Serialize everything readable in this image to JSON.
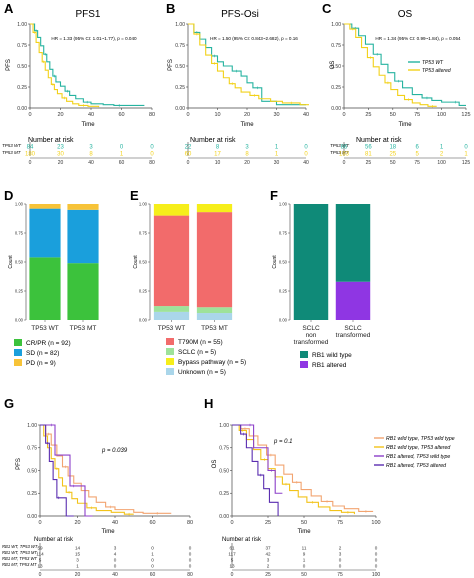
{
  "colors": {
    "wt": "#26b3a0",
    "mt": "#f2d11a",
    "rb_wt_tp_wt": "#f2a470",
    "rb_wt_tp_mt": "#f2c31a",
    "rb_alt_tp_wt": "#8c3fc9",
    "rb_alt_tp_mt": "#5a2db0",
    "cr_pr": "#3cc23c",
    "sd": "#1a9fdc",
    "pd": "#f7c338",
    "t790m": "#f26b6b",
    "sclc": "#9ee29a",
    "bypass": "#f6ee1a",
    "unknown": "#aad6ea",
    "rb1_wt": "#0f8a78",
    "rb1_alt": "#8f36e3"
  },
  "panels": {
    "A": {
      "letter": "A",
      "title": "PFS1",
      "ylabel": "PFS",
      "xlabel": "Time",
      "stat": "HR = 1.33 (95% CI: 1.01~1.77), p = 0.040",
      "risk_title": "Number at risk",
      "risk_labels": [
        "TP53 WT",
        "TP53 MT"
      ]
    },
    "B": {
      "letter": "B",
      "title": "PFS-Osi",
      "ylabel": "PFS",
      "xlabel": "Time",
      "stat": "HR = 1.50 (95% CI: 0.843~2.682), p = 0.16",
      "risk_title": "Number at risk"
    },
    "C": {
      "letter": "C",
      "title": "OS",
      "ylabel": "OS",
      "xlabel": "Time",
      "stat": "HR = 1.34 (95% CI: 0.99~1.84), p = 0.054",
      "risk_title": "Number at risk",
      "risk_labels": [
        "TP53 WT",
        "TP53 MT"
      ],
      "legend": [
        "TP53 WT",
        "TP53 altered"
      ]
    },
    "D": {
      "letter": "D",
      "ylabel": "Count",
      "legend": [
        "CR/PR (n = 92)",
        "SD (n = 82)",
        "PD (n = 9)"
      ]
    },
    "E": {
      "letter": "E",
      "ylabel": "Count",
      "legend": [
        "T790M (n = 55)",
        "SCLC (n = 5)",
        "Bypass pathway (n = 5)",
        "Unknown (n = 5)"
      ]
    },
    "F": {
      "letter": "F",
      "ylabel": "Count",
      "legend": [
        "RB1 wild type",
        "RB1 altered"
      ]
    },
    "G": {
      "letter": "G",
      "ylabel": "PFS",
      "xlabel": "Time",
      "stat": "p = 0.039",
      "risk_title": "Number at risk",
      "risk_labels": [
        "RB1 WT, TP53 WT",
        "RB1 WT, TP53 MT",
        "RB1 MT, TP53 WT",
        "RB1 MT, TP53 MT"
      ]
    },
    "H": {
      "letter": "H",
      "ylabel": "OS",
      "xlabel": "Time",
      "stat": "p = 0.1",
      "risk_title": "Number at risk",
      "legend": [
        "RB1 wild type, TP53 wild type",
        "RB1 wild type, TP53 altered",
        "RB1 altered, TP53 wild type",
        "RB1 altered, TP53 altered"
      ]
    }
  },
  "chart_data": [
    {
      "panel": "A",
      "type": "line",
      "title": "PFS1",
      "xlabel": "Time",
      "ylabel": "PFS",
      "xlim": [
        0,
        80
      ],
      "ylim": [
        0,
        1
      ],
      "xticks": [
        0,
        20,
        40,
        60,
        80
      ],
      "yticks": [
        0.0,
        0.25,
        0.5,
        0.75,
        1.0
      ],
      "series": [
        {
          "name": "TP53 WT",
          "x": [
            0,
            3,
            5,
            7,
            9,
            11,
            13,
            15,
            17,
            20,
            23,
            26,
            30,
            35,
            40,
            48,
            55,
            62,
            75
          ],
          "y": [
            1,
            0.92,
            0.84,
            0.74,
            0.64,
            0.55,
            0.46,
            0.38,
            0.31,
            0.26,
            0.2,
            0.15,
            0.11,
            0.07,
            0.05,
            0.04,
            0.03,
            0.03,
            0.03
          ]
        },
        {
          "name": "TP53 altered",
          "x": [
            0,
            2,
            4,
            6,
            8,
            10,
            12,
            14,
            16,
            18,
            21,
            24,
            28,
            32,
            38,
            45
          ],
          "y": [
            1,
            0.9,
            0.78,
            0.66,
            0.55,
            0.45,
            0.36,
            0.28,
            0.22,
            0.17,
            0.12,
            0.08,
            0.05,
            0.03,
            0.02,
            0.01
          ]
        }
      ],
      "risk_table": {
        "times": [
          0,
          20,
          40,
          60,
          80
        ],
        "rows": [
          {
            "name": "TP53 WT",
            "values": [
              84,
              23,
              3,
              0,
              0
            ]
          },
          {
            "name": "TP53 MT",
            "values": [
              180,
              30,
              8,
              1,
              0
            ]
          }
        ]
      }
    },
    {
      "panel": "B",
      "type": "line",
      "title": "PFS-Osi",
      "xlabel": "Time",
      "ylabel": "PFS",
      "xlim": [
        0,
        40
      ],
      "ylim": [
        0,
        1
      ],
      "xticks": [
        0,
        10,
        20,
        30,
        40
      ],
      "yticks": [
        0.0,
        0.25,
        0.5,
        0.75,
        1.0
      ],
      "series": [
        {
          "name": "TP53 WT",
          "x": [
            0,
            2,
            4,
            6,
            8,
            10,
            12,
            15,
            18,
            20,
            22,
            25,
            30,
            40
          ],
          "y": [
            1,
            0.9,
            0.82,
            0.72,
            0.62,
            0.55,
            0.5,
            0.44,
            0.38,
            0.3,
            0.24,
            0.08,
            0.04,
            0.04
          ]
        },
        {
          "name": "TP53 altered",
          "x": [
            0,
            2,
            4,
            6,
            8,
            10,
            12,
            14,
            16,
            18,
            21,
            24,
            28,
            32,
            38,
            41
          ],
          "y": [
            1,
            0.88,
            0.75,
            0.63,
            0.53,
            0.44,
            0.36,
            0.29,
            0.24,
            0.19,
            0.15,
            0.11,
            0.08,
            0.06,
            0.04,
            0.04
          ]
        }
      ],
      "risk_table": {
        "times": [
          0,
          10,
          20,
          30,
          40
        ],
        "rows": [
          {
            "name": "TP53 WT",
            "values": [
              22,
              8,
              3,
              1,
              0
            ]
          },
          {
            "name": "TP53 MT",
            "values": [
              60,
              17,
              8,
              1,
              0
            ]
          }
        ]
      }
    },
    {
      "panel": "C",
      "type": "line",
      "title": "OS",
      "xlabel": "Time",
      "ylabel": "OS",
      "xlim": [
        0,
        125
      ],
      "ylim": [
        0,
        1
      ],
      "xticks": [
        0,
        25,
        50,
        75,
        100,
        125
      ],
      "yticks": [
        0.0,
        0.25,
        0.5,
        0.75,
        1.0
      ],
      "series": [
        {
          "name": "TP53 WT",
          "x": [
            0,
            8,
            15,
            22,
            30,
            38,
            45,
            52,
            60,
            70,
            80,
            90,
            100,
            110,
            118,
            125
          ],
          "y": [
            1,
            0.95,
            0.86,
            0.76,
            0.64,
            0.52,
            0.42,
            0.32,
            0.24,
            0.16,
            0.12,
            0.09,
            0.07,
            0.07,
            0.03,
            0.03
          ]
        },
        {
          "name": "TP53 altered",
          "x": [
            0,
            6,
            12,
            18,
            24,
            30,
            36,
            42,
            48,
            55,
            62,
            70,
            78,
            86,
            95
          ],
          "y": [
            1,
            0.94,
            0.84,
            0.72,
            0.6,
            0.49,
            0.39,
            0.3,
            0.22,
            0.15,
            0.1,
            0.06,
            0.04,
            0.02,
            0.02
          ]
        }
      ],
      "risk_table": {
        "times": [
          0,
          25,
          50,
          75,
          100,
          125
        ],
        "rows": [
          {
            "name": "TP53 WT",
            "values": [
              86,
              56,
              18,
              6,
              1,
              0
            ]
          },
          {
            "name": "TP53 MT",
            "values": [
              183,
              81,
              25,
              5,
              2,
              1
            ]
          }
        ]
      }
    },
    {
      "panel": "D",
      "type": "bar",
      "ylabel": "Count",
      "stacked": true,
      "normalized": true,
      "categories": [
        "TP53 WT",
        "TP53 MT"
      ],
      "yticks": [
        0.0,
        0.25,
        0.5,
        0.75,
        1.0
      ],
      "series": [
        {
          "name": "CR/PR (n = 92)",
          "values": [
            0.54,
            0.49
          ]
        },
        {
          "name": "SD (n = 82)",
          "values": [
            0.42,
            0.46
          ]
        },
        {
          "name": "PD (n = 9)",
          "values": [
            0.04,
            0.05
          ]
        }
      ]
    },
    {
      "panel": "E",
      "type": "bar",
      "ylabel": "Count",
      "stacked": true,
      "normalized": true,
      "categories": [
        "TP53 WT",
        "TP53 MT"
      ],
      "yticks": [
        0.0,
        0.25,
        0.5,
        0.75,
        1.0
      ],
      "series": [
        {
          "name": "Unknown (n = 5)",
          "values": [
            0.07,
            0.06
          ]
        },
        {
          "name": "SCLC (n = 5)",
          "values": [
            0.05,
            0.05
          ]
        },
        {
          "name": "T790M (n = 55)",
          "values": [
            0.78,
            0.82
          ]
        },
        {
          "name": "Bypass pathway (n = 5)",
          "values": [
            0.1,
            0.07
          ]
        }
      ]
    },
    {
      "panel": "F",
      "type": "bar",
      "ylabel": "Count",
      "stacked": true,
      "normalized": true,
      "categories": [
        "SCLC non transformed",
        "SCLC transformed"
      ],
      "category_lines": [
        [
          "SCLC",
          "non",
          "transformed"
        ],
        [
          "SCLC",
          "transformed"
        ]
      ],
      "yticks": [
        0.0,
        0.25,
        0.5,
        0.75,
        1.0
      ],
      "series": [
        {
          "name": "RB1 altered",
          "values": [
            0.0,
            0.33
          ]
        },
        {
          "name": "RB1 wild type",
          "values": [
            1.0,
            0.67
          ]
        }
      ]
    },
    {
      "panel": "G",
      "type": "line",
      "xlabel": "Time",
      "ylabel": "PFS",
      "xlim": [
        0,
        80
      ],
      "ylim": [
        0,
        1
      ],
      "xticks": [
        0,
        20,
        40,
        60,
        80
      ],
      "yticks": [
        0.0,
        0.25,
        0.5,
        0.75,
        1.0
      ],
      "series": [
        {
          "name": "RB1 wild type, TP53 wild type",
          "x": [
            0,
            3,
            6,
            9,
            12,
            15,
            18,
            22,
            26,
            30,
            35,
            40,
            50,
            55,
            70
          ],
          "y": [
            1,
            0.9,
            0.78,
            0.66,
            0.54,
            0.44,
            0.36,
            0.28,
            0.21,
            0.15,
            0.1,
            0.07,
            0.04,
            0.03,
            0.03
          ]
        },
        {
          "name": "RB1 wild type, TP53 altered",
          "x": [
            0,
            2,
            4,
            6,
            8,
            10,
            12,
            14,
            17,
            20,
            25,
            30,
            38,
            45,
            50
          ],
          "y": [
            1,
            0.88,
            0.75,
            0.63,
            0.52,
            0.42,
            0.33,
            0.26,
            0.19,
            0.14,
            0.09,
            0.06,
            0.04,
            0.02,
            0.02
          ]
        },
        {
          "name": "RB1 altered, TP53 wild type",
          "x": [
            0,
            4,
            8,
            12,
            16,
            20,
            24,
            28
          ],
          "y": [
            1,
            1,
            0.67,
            0.67,
            0.33,
            0.33,
            0.0,
            0.0
          ]
        },
        {
          "name": "RB1 altered, TP53 altered",
          "x": [
            0,
            3,
            5,
            7,
            9,
            11,
            14,
            18
          ],
          "y": [
            1,
            0.8,
            0.6,
            0.4,
            0.2,
            0.2,
            0.0,
            0.0
          ]
        }
      ],
      "risk_table": {
        "times": [
          0,
          20,
          40,
          60,
          80
        ],
        "rows": [
          {
            "name": "RB1 WT, TP53 WT",
            "values": [
              59,
              14,
              3,
              0,
              0
            ]
          },
          {
            "name": "RB1 WT, TP53 MT",
            "values": [
              114,
              15,
              4,
              1,
              0
            ]
          },
          {
            "name": "RB1 MT, TP53 WT",
            "values": [
              5,
              3,
              0,
              0,
              0
            ]
          },
          {
            "name": "RB1 MT, TP53 MT",
            "values": [
              13,
              1,
              0,
              0,
              0
            ]
          }
        ]
      }
    },
    {
      "panel": "H",
      "type": "line",
      "xlabel": "Time",
      "ylabel": "OS",
      "xlim": [
        0,
        100
      ],
      "ylim": [
        0,
        1
      ],
      "xticks": [
        0,
        25,
        50,
        75,
        100
      ],
      "yticks": [
        0.0,
        0.25,
        0.5,
        0.75,
        1.0
      ],
      "series": [
        {
          "name": "RB1 wild type, TP53 wild type",
          "x": [
            0,
            6,
            12,
            18,
            24,
            30,
            36,
            42,
            48,
            55,
            62,
            70,
            78,
            88,
            98
          ],
          "y": [
            1,
            0.96,
            0.88,
            0.78,
            0.67,
            0.56,
            0.46,
            0.37,
            0.29,
            0.22,
            0.16,
            0.11,
            0.08,
            0.05,
            0.05
          ]
        },
        {
          "name": "RB1 wild type, TP53 altered",
          "x": [
            0,
            5,
            10,
            15,
            20,
            25,
            30,
            35,
            40,
            46,
            52,
            60,
            68,
            76,
            85
          ],
          "y": [
            1,
            0.94,
            0.84,
            0.73,
            0.62,
            0.52,
            0.43,
            0.35,
            0.28,
            0.21,
            0.15,
            0.1,
            0.06,
            0.04,
            0.02
          ]
        },
        {
          "name": "RB1 altered, TP53 wild type",
          "x": [
            0,
            10,
            15,
            20,
            25,
            30,
            35
          ],
          "y": [
            1,
            1,
            0.75,
            0.75,
            0.5,
            0.25,
            0.25
          ]
        },
        {
          "name": "RB1 altered, TP53 altered",
          "x": [
            0,
            6,
            10,
            14,
            18,
            22,
            26,
            32
          ],
          "y": [
            1,
            0.9,
            0.75,
            0.6,
            0.45,
            0.3,
            0.15,
            0.0
          ]
        }
      ],
      "risk_table": {
        "times": [
          0,
          25,
          50,
          75,
          100
        ],
        "rows": [
          {
            "name": "RB1 WT, TP53 WT",
            "values": [
              61,
              37,
              11,
              2,
              0
            ]
          },
          {
            "name": "RB1 WT, TP53 MT",
            "values": [
              117,
              42,
              9,
              3,
              0
            ]
          },
          {
            "name": "RB1 MT, TP53 WT",
            "values": [
              5,
              3,
              1,
              0,
              0
            ]
          },
          {
            "name": "RB1 MT, TP53 MT",
            "values": [
              13,
              2,
              0,
              0,
              0
            ]
          }
        ]
      }
    }
  ]
}
